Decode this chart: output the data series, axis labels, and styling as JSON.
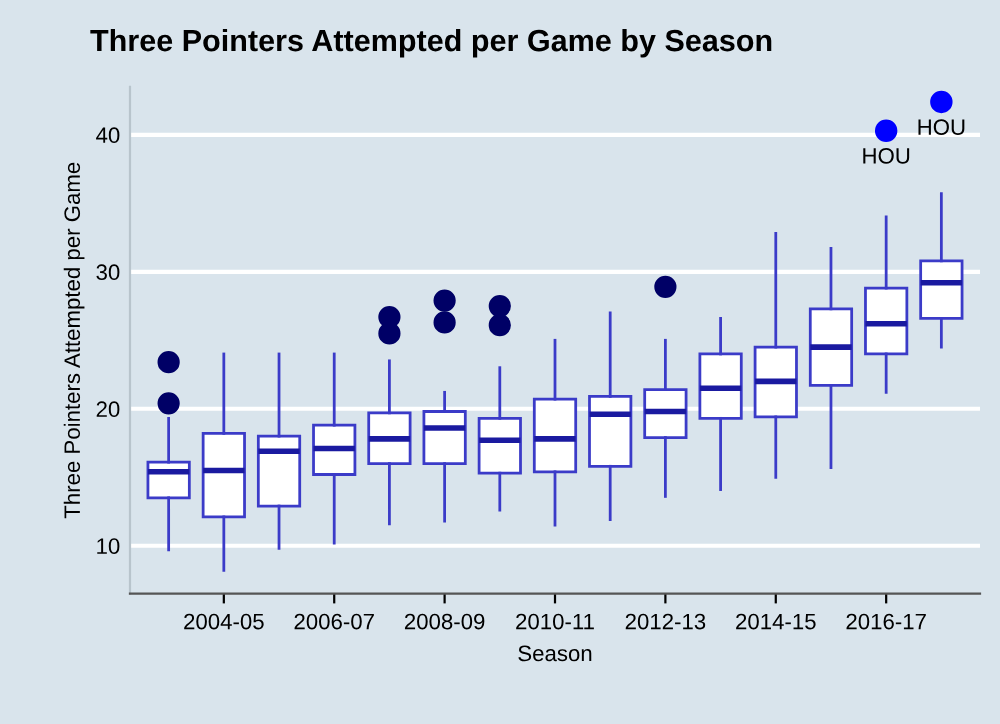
{
  "chart_data": {
    "type": "box",
    "title": "Three Pointers Attempted per Game by Season",
    "xlabel": "Season",
    "ylabel": "Three Pointers Attempted per Game",
    "categories": [
      null,
      "2004-05",
      null,
      "2006-07",
      null,
      "2008-09",
      null,
      "2010-11",
      null,
      "2012-13",
      null,
      "2014-15",
      null,
      "2016-17",
      null
    ],
    "ylim": [
      6.5,
      43.5
    ],
    "yticks": [
      10,
      20,
      30,
      40
    ],
    "grid": "y",
    "series": [
      {
        "color": "#3b3bc8",
        "boxes": [
          {
            "low": 9.7,
            "q1": 13.5,
            "median": 15.4,
            "q3": 16.1,
            "high": 19.3,
            "outliers": [
              20.4,
              23.4
            ]
          },
          {
            "low": 8.2,
            "q1": 12.1,
            "median": 15.5,
            "q3": 18.2,
            "high": 24.0
          },
          {
            "low": 9.8,
            "q1": 12.9,
            "median": 16.9,
            "q3": 18.0,
            "high": 24.0
          },
          {
            "low": 10.2,
            "q1": 15.2,
            "median": 17.1,
            "q3": 18.8,
            "high": 24.0
          },
          {
            "low": 11.6,
            "q1": 16.0,
            "median": 17.8,
            "q3": 19.7,
            "high": 23.5,
            "outliers": [
              25.5,
              26.7
            ]
          },
          {
            "low": 11.8,
            "q1": 16.0,
            "median": 18.6,
            "q3": 19.8,
            "high": 21.2,
            "outliers": [
              26.3,
              27.9
            ]
          },
          {
            "low": 12.6,
            "q1": 15.3,
            "median": 17.7,
            "q3": 19.3,
            "high": 23.0,
            "outliers": [
              26.1,
              27.5
            ]
          },
          {
            "low": 11.5,
            "q1": 15.4,
            "median": 17.8,
            "q3": 20.7,
            "high": 25.0
          },
          {
            "low": 11.9,
            "q1": 15.8,
            "median": 19.6,
            "q3": 20.9,
            "high": 27.0
          },
          {
            "low": 13.6,
            "q1": 17.9,
            "median": 19.8,
            "q3": 21.4,
            "high": 25.0,
            "outliers": [
              28.9
            ]
          },
          {
            "low": 14.1,
            "q1": 19.3,
            "median": 21.5,
            "q3": 24.0,
            "high": 26.6
          },
          {
            "low": 15.0,
            "q1": 19.4,
            "median": 22.0,
            "q3": 24.5,
            "high": 32.8
          },
          {
            "low": 15.7,
            "q1": 21.7,
            "median": 24.5,
            "q3": 27.3,
            "high": 31.7
          },
          {
            "low": 21.2,
            "q1": 24.0,
            "median": 26.2,
            "q3": 28.8,
            "high": 34.0
          },
          {
            "low": 24.5,
            "q1": 26.6,
            "median": 29.2,
            "q3": 30.8,
            "high": 35.7
          }
        ]
      },
      {
        "type": "scatter",
        "color": "#0000ff",
        "values": [
          null,
          null,
          null,
          null,
          null,
          null,
          null,
          null,
          null,
          null,
          null,
          null,
          null,
          40.3,
          42.4
        ]
      }
    ],
    "annotations": [
      {
        "text": "HOU",
        "x": "2016-17",
        "y": 40.3
      },
      {
        "text": "HOU",
        "y": 42.4
      }
    ]
  }
}
